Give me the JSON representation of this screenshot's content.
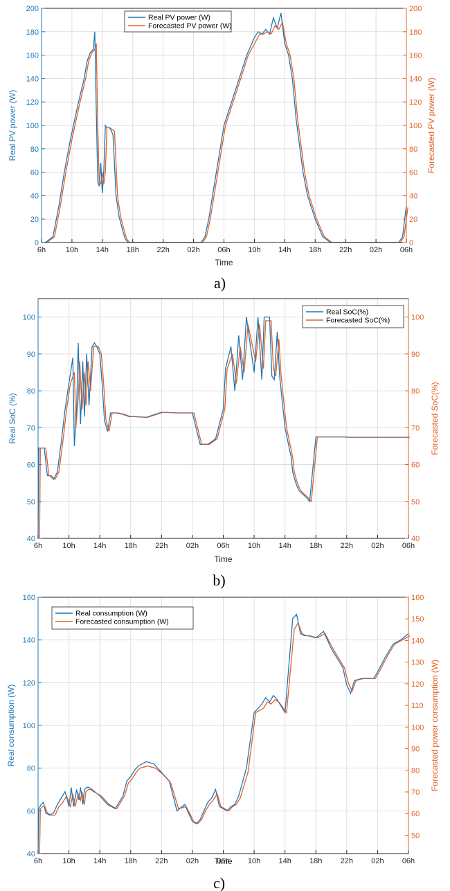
{
  "colors": {
    "real": "#1f77b4",
    "forecast": "#e2622a",
    "grid": "#dedede",
    "axis": "#262626"
  },
  "chart_data": [
    {
      "type": "line",
      "caption": "a)",
      "xlabel": "Time",
      "ylabel_left": "Real PV power (W)",
      "ylabel_right": "Forecasted PV power (W)",
      "x_ticks": [
        "6h",
        "10h",
        "14h",
        "18h",
        "22h",
        "02h",
        "06h",
        "10h",
        "14h",
        "18h",
        "22h",
        "02h",
        "06h"
      ],
      "x_range_hours": [
        0,
        48
      ],
      "ylim_left": [
        0,
        200
      ],
      "ylim_right": [
        0,
        200
      ],
      "yticks_left": [
        0,
        20,
        40,
        60,
        80,
        100,
        120,
        140,
        160,
        180,
        200
      ],
      "yticks_right": [
        0,
        20,
        40,
        60,
        80,
        100,
        120,
        140,
        160,
        180,
        200
      ],
      "grid": true,
      "legend_position": "top-center",
      "series": [
        {
          "name": "Real PV power (W)",
          "axis": "left",
          "x": [
            0,
            0.5,
            1.5,
            2.3,
            3,
            3.8,
            4.8,
            5.6,
            6,
            6.4,
            6.8,
            7,
            7.2,
            7.4,
            7.6,
            7.8,
            8,
            8.2,
            8.4,
            8.6,
            9,
            9.4,
            9.8,
            10.2,
            10.6,
            11,
            11.4,
            11.8,
            12.4,
            13,
            13.6,
            14.2,
            15,
            16,
            17,
            18,
            19,
            20,
            21,
            21.5,
            22,
            22.5,
            23,
            23.5,
            24,
            25,
            26,
            27,
            28,
            28.5,
            29,
            29.5,
            30,
            30.5,
            31,
            31.5,
            32,
            32.5,
            33,
            33.5,
            34,
            34.4,
            35,
            36,
            37,
            38,
            39,
            40,
            41,
            42,
            43,
            44,
            44.5,
            45,
            46,
            46.5,
            47,
            47.5,
            48
          ],
          "y": [
            0,
            0,
            5,
            32,
            60,
            88,
            118,
            140,
            155,
            162,
            165,
            180,
            112,
            52,
            48,
            68,
            42,
            62,
            100,
            98,
            98,
            92,
            40,
            22,
            12,
            3,
            0,
            0,
            0,
            0,
            0,
            0,
            0,
            0,
            0,
            0,
            0,
            0,
            0,
            5,
            20,
            40,
            60,
            80,
            100,
            120,
            140,
            160,
            175,
            180,
            178,
            182,
            178,
            192,
            183,
            196,
            170,
            160,
            140,
            105,
            80,
            60,
            40,
            20,
            5,
            0,
            0,
            0,
            0,
            0,
            0,
            0,
            0,
            0,
            0,
            0,
            0,
            5,
            32
          ],
          "smooth_y": [
            0,
            0,
            5,
            32,
            60,
            88,
            118,
            140,
            155,
            162,
            165,
            170,
            100,
            50,
            50,
            60,
            50,
            60,
            98,
            98,
            97,
            95,
            40,
            22,
            12,
            3,
            0,
            0,
            0,
            0,
            0,
            0,
            0,
            0,
            0,
            0,
            0,
            0,
            0,
            5,
            20,
            40,
            60,
            80,
            100,
            120,
            140,
            160,
            172,
            178,
            178,
            180,
            178,
            185,
            182,
            188,
            170,
            160,
            140,
            105,
            80,
            60,
            40,
            20,
            5,
            0,
            0,
            0,
            0,
            0,
            0,
            0,
            0,
            0,
            0,
            0,
            0,
            5,
            30
          ]
        },
        {
          "name": "Forecasted PV power (W)",
          "axis": "right"
        }
      ]
    },
    {
      "type": "line",
      "caption": "b)",
      "xlabel": "Time",
      "ylabel_left": "Real SoC (%)",
      "ylabel_right": "Forecasted SoC(%)",
      "x_ticks": [
        "6h",
        "10h",
        "14h",
        "18h",
        "22h",
        "02h",
        "06h",
        "10h",
        "14h",
        "18h",
        "22h",
        "02h",
        "06h"
      ],
      "x_range_hours": [
        0,
        48
      ],
      "ylim_left": [
        40,
        105
      ],
      "ylim_right": [
        40,
        105
      ],
      "yticks_left": [
        40,
        50,
        60,
        70,
        80,
        90,
        100
      ],
      "yticks_right": [
        40,
        50,
        60,
        70,
        80,
        90,
        100
      ],
      "grid": true,
      "legend_position": "top-right",
      "series": [
        {
          "name": "Real SoC(%)",
          "axis": "left",
          "x": [
            0,
            0.1,
            0.3,
            0.8,
            1.2,
            1.5,
            2,
            2.5,
            3,
            3.5,
            4,
            4.5,
            4.7,
            5,
            5.2,
            5.5,
            5.8,
            6,
            6.3,
            6.6,
            7,
            7.3,
            7.6,
            8,
            8.3,
            8.6,
            9,
            9.4,
            9.8,
            10.2,
            10.6,
            11,
            11.4,
            11.8,
            12.5,
            14,
            16,
            18,
            19,
            20,
            21,
            22,
            23,
            24,
            24.3,
            25,
            25.5,
            26,
            26.5,
            27,
            28,
            28.5,
            29,
            29.3,
            29.6,
            30,
            30.3,
            30.6,
            31,
            31.3,
            31.6,
            32,
            32.4,
            32.8,
            33,
            33.4,
            33.8,
            34.3,
            34.8,
            35.2,
            36,
            37,
            38,
            39,
            39.6,
            39.7,
            40,
            41,
            43,
            45,
            47,
            48
          ],
          "y": [
            40,
            64.5,
            64.5,
            64.5,
            57,
            57,
            56,
            58,
            66,
            75,
            82,
            89,
            65,
            75,
            93,
            71,
            88,
            73,
            90,
            76,
            92,
            93,
            92,
            90,
            82,
            72,
            69,
            74,
            74,
            74,
            73.8,
            73.6,
            73.3,
            73,
            73,
            72.8,
            74.2,
            74,
            74,
            74,
            65.5,
            65.5,
            67,
            75,
            86,
            92,
            80,
            95,
            83,
            100,
            85,
            100,
            83,
            100,
            100,
            100,
            84,
            83,
            96,
            84,
            78,
            70,
            66,
            62,
            58,
            55,
            53,
            52,
            51,
            50,
            67.5,
            67.5,
            67.5,
            67.5,
            67.5,
            67.5,
            67.4,
            67.4,
            67.4,
            67.4,
            67.4,
            67.4
          ],
          "smooth_y": [
            40,
            64.5,
            64.5,
            64.5,
            57,
            57,
            56,
            58,
            66,
            75,
            82,
            85,
            70,
            78,
            88,
            75,
            85,
            76,
            88,
            80,
            92,
            92,
            92,
            90,
            82,
            72,
            69,
            74,
            74,
            74,
            73.8,
            73.6,
            73.3,
            73,
            73,
            72.8,
            74.2,
            74,
            74,
            74,
            65.5,
            65.5,
            67,
            75,
            86,
            90,
            82,
            92,
            85,
            98,
            88,
            98,
            86,
            99,
            99,
            99,
            86,
            84,
            94,
            84,
            78,
            70,
            66,
            62,
            58,
            55,
            53,
            52,
            51,
            50,
            67.5,
            67.5,
            67.5,
            67.5,
            67.5,
            67.5,
            67.4,
            67.4,
            67.4,
            67.4,
            67.4,
            67.4
          ]
        },
        {
          "name": "Forecasted SoC(%)",
          "axis": "right"
        }
      ]
    },
    {
      "type": "line",
      "caption": "c)",
      "xlabel": "Time",
      "ylabel_left": "Real consumption (W)",
      "ylabel_right": "Forecasted power consumption (W)",
      "x_ticks": [
        "6h",
        "10h",
        "14h",
        "18h",
        "22h",
        "02h",
        "06h",
        "10h",
        "14h",
        "18h",
        "22h",
        "02h",
        "06h"
      ],
      "x_range_hours": [
        0,
        48
      ],
      "ylim_left": [
        40,
        160
      ],
      "ylim_right": [
        41.5,
        160
      ],
      "yticks_left": [
        40,
        60,
        80,
        100,
        120,
        140,
        160
      ],
      "yticks_right": [
        50,
        60,
        70,
        80,
        90,
        100,
        110,
        120,
        130,
        140,
        150,
        160
      ],
      "grid": true,
      "legend_position": "top-left",
      "series": [
        {
          "name": "Real consumption (W)",
          "axis": "left",
          "x": [
            0,
            0.1,
            0.4,
            0.7,
            1,
            1.5,
            2,
            2.5,
            3,
            3.5,
            4,
            4.3,
            4.6,
            5,
            5.3,
            5.5,
            5.8,
            6,
            6.3,
            6.6,
            7,
            8,
            9,
            10,
            11,
            11.5,
            12,
            12.5,
            13,
            14,
            15,
            16,
            17,
            18,
            19,
            20,
            20.5,
            21,
            21.5,
            22,
            22.5,
            23,
            23.5,
            24,
            24.5,
            25,
            25.5,
            26,
            27,
            28,
            29,
            29.5,
            30,
            30.5,
            31,
            32,
            33,
            33.5,
            34,
            34.5,
            35,
            36,
            37,
            38,
            39,
            39.5,
            40,
            40.5,
            41,
            42,
            43,
            43.5,
            44,
            45,
            46,
            47,
            48
          ],
          "y": [
            40,
            61,
            63,
            64,
            59,
            58,
            59,
            63,
            66,
            69,
            62,
            71,
            62,
            70,
            65,
            71,
            63,
            70,
            71,
            71,
            70,
            67,
            63,
            61,
            67,
            74,
            76,
            79,
            81,
            83,
            82,
            78,
            74,
            60,
            63,
            55,
            54,
            56,
            60,
            64,
            66,
            70,
            62,
            61,
            60,
            62,
            63,
            67,
            80,
            106,
            110,
            113,
            111,
            114,
            112,
            106,
            150,
            152,
            143,
            142,
            142,
            141,
            144,
            136,
            130,
            127,
            119,
            115,
            121,
            122,
            122,
            122,
            125,
            132,
            138,
            140,
            143
          ],
          "smooth_y": [
            40,
            61,
            62,
            62,
            59,
            58,
            58,
            62,
            64,
            67,
            62,
            68,
            62,
            68,
            65,
            69,
            63,
            69,
            70,
            70,
            69,
            67,
            63,
            61,
            67,
            73,
            75,
            78,
            80,
            81,
            80,
            77,
            73,
            61,
            62,
            55,
            54,
            56,
            60,
            63,
            65,
            68,
            62,
            61,
            60,
            62,
            63,
            66,
            78,
            106,
            108,
            111,
            110,
            112,
            111,
            106,
            145,
            148,
            143,
            142,
            142,
            141,
            143,
            136,
            130,
            127,
            120,
            116,
            121,
            122,
            122,
            122,
            125,
            132,
            138,
            140,
            142
          ]
        },
        {
          "name": "Forecasted consumption (W)",
          "axis": "right"
        }
      ]
    }
  ]
}
